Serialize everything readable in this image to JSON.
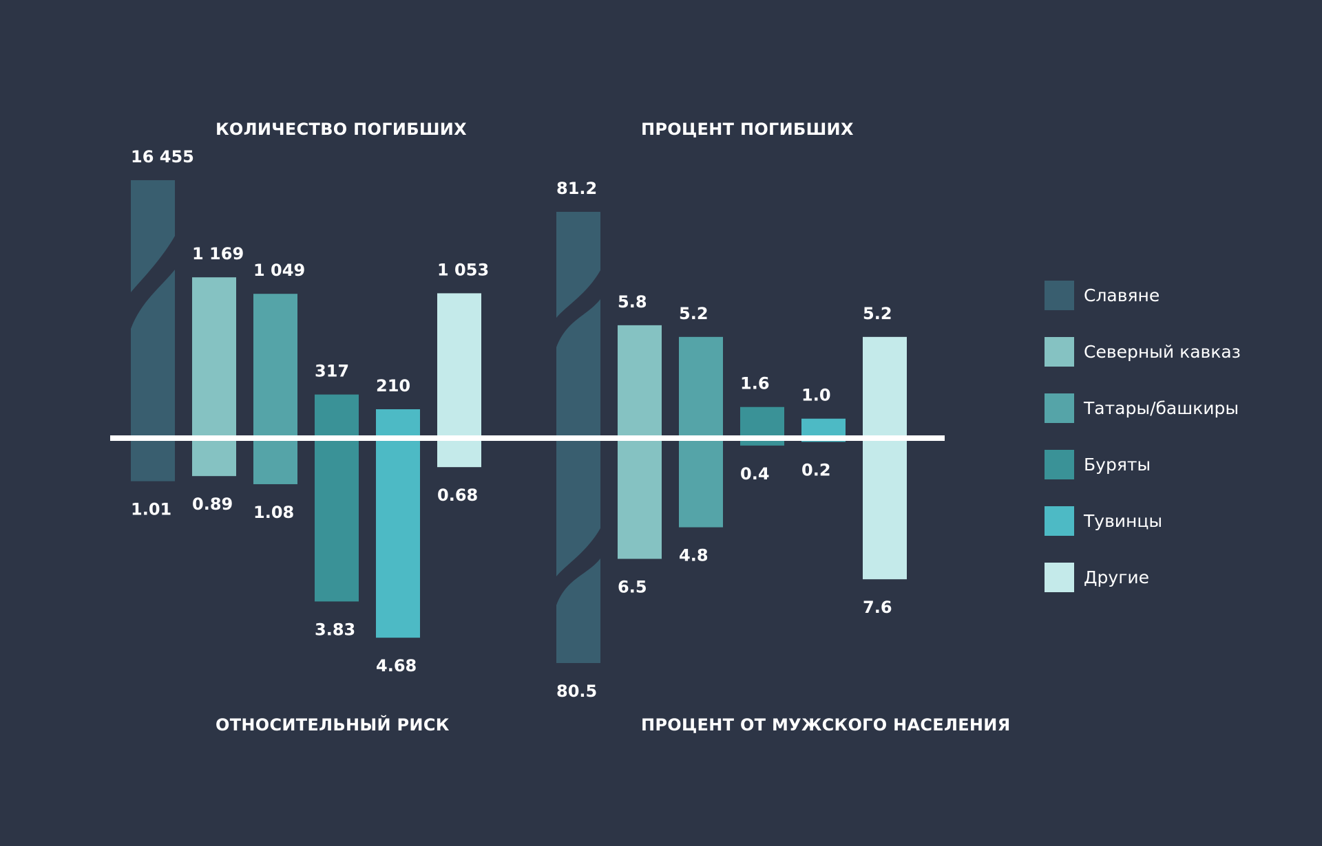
{
  "background": "#2d3546",
  "chart_data": {
    "type": "bar",
    "categories": [
      "Славяне",
      "Северный кавказ",
      "Татары/башкиры",
      "Буряты",
      "Тувинцы",
      "Другие"
    ],
    "colors": [
      "#395e6f",
      "#85c2c2",
      "#55a4a8",
      "#3a9297",
      "#4dbac5",
      "#c4eaea"
    ],
    "legend": {
      "position": "right",
      "entries": [
        "Славяне",
        "Северный кавказ",
        "Татары/башкиры",
        "Буряты",
        "Тувинцы",
        "Другие"
      ]
    },
    "panels": [
      {
        "name": "left",
        "top": {
          "title": "КОЛИЧЕСТВО ПОГИБШИХ",
          "values": [
            16455,
            1169,
            1049,
            317,
            210,
            1053
          ],
          "labels": [
            "16 455",
            "1 169",
            "1 049",
            "317",
            "210",
            "1 053"
          ],
          "broken": [
            true,
            false,
            false,
            false,
            false,
            false
          ]
        },
        "bottom": {
          "title": "ОТНОСИТЕЛЬНЫЙ РИСК",
          "values": [
            1.01,
            0.89,
            1.08,
            3.83,
            4.68,
            0.68
          ],
          "labels": [
            "1.01",
            "0.89",
            "1.08",
            "3.83",
            "4.68",
            "0.68"
          ],
          "broken": [
            false,
            false,
            false,
            false,
            false,
            false
          ]
        }
      },
      {
        "name": "right",
        "top": {
          "title": "ПРОЦЕНТ ПОГИБШИХ",
          "values": [
            81.2,
            5.8,
            5.2,
            1.6,
            1.0,
            5.2
          ],
          "labels": [
            "81.2",
            "5.8",
            "5.2",
            "1.6",
            "1.0",
            "5.2"
          ],
          "broken": [
            true,
            false,
            false,
            false,
            false,
            false
          ]
        },
        "bottom": {
          "title": "ПРОЦЕНТ ОТ МУЖСКОГО НАСЕЛЕНИЯ",
          "values": [
            80.5,
            6.5,
            4.8,
            0.4,
            0.2,
            7.6
          ],
          "labels": [
            "80.5",
            "6.5",
            "4.8",
            "0.4",
            "0.2",
            "7.6"
          ],
          "broken": [
            true,
            false,
            false,
            false,
            false,
            false
          ]
        }
      }
    ],
    "grid": false,
    "baseline_color": "#ffffff"
  }
}
